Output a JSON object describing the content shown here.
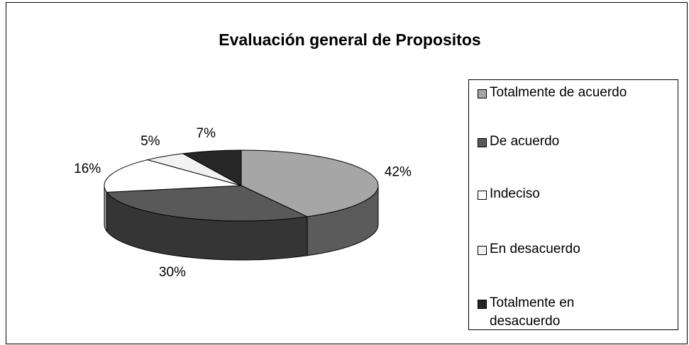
{
  "chart_data": {
    "type": "pie",
    "title": "Evaluación general de Propositos",
    "categories": [
      "Totalmente de acuerdo",
      "De acuerdo",
      "Indeciso",
      "En desacuerdo",
      "Totalmente en desacuerdo"
    ],
    "values": [
      42,
      30,
      16,
      5,
      7
    ],
    "value_labels": [
      "42%",
      "30%",
      "16%",
      "5%",
      "7%"
    ],
    "colors": [
      "#a6a6a6",
      "#595959",
      "#ffffff",
      "#f2f2f2",
      "#262626"
    ],
    "legend": "right"
  }
}
